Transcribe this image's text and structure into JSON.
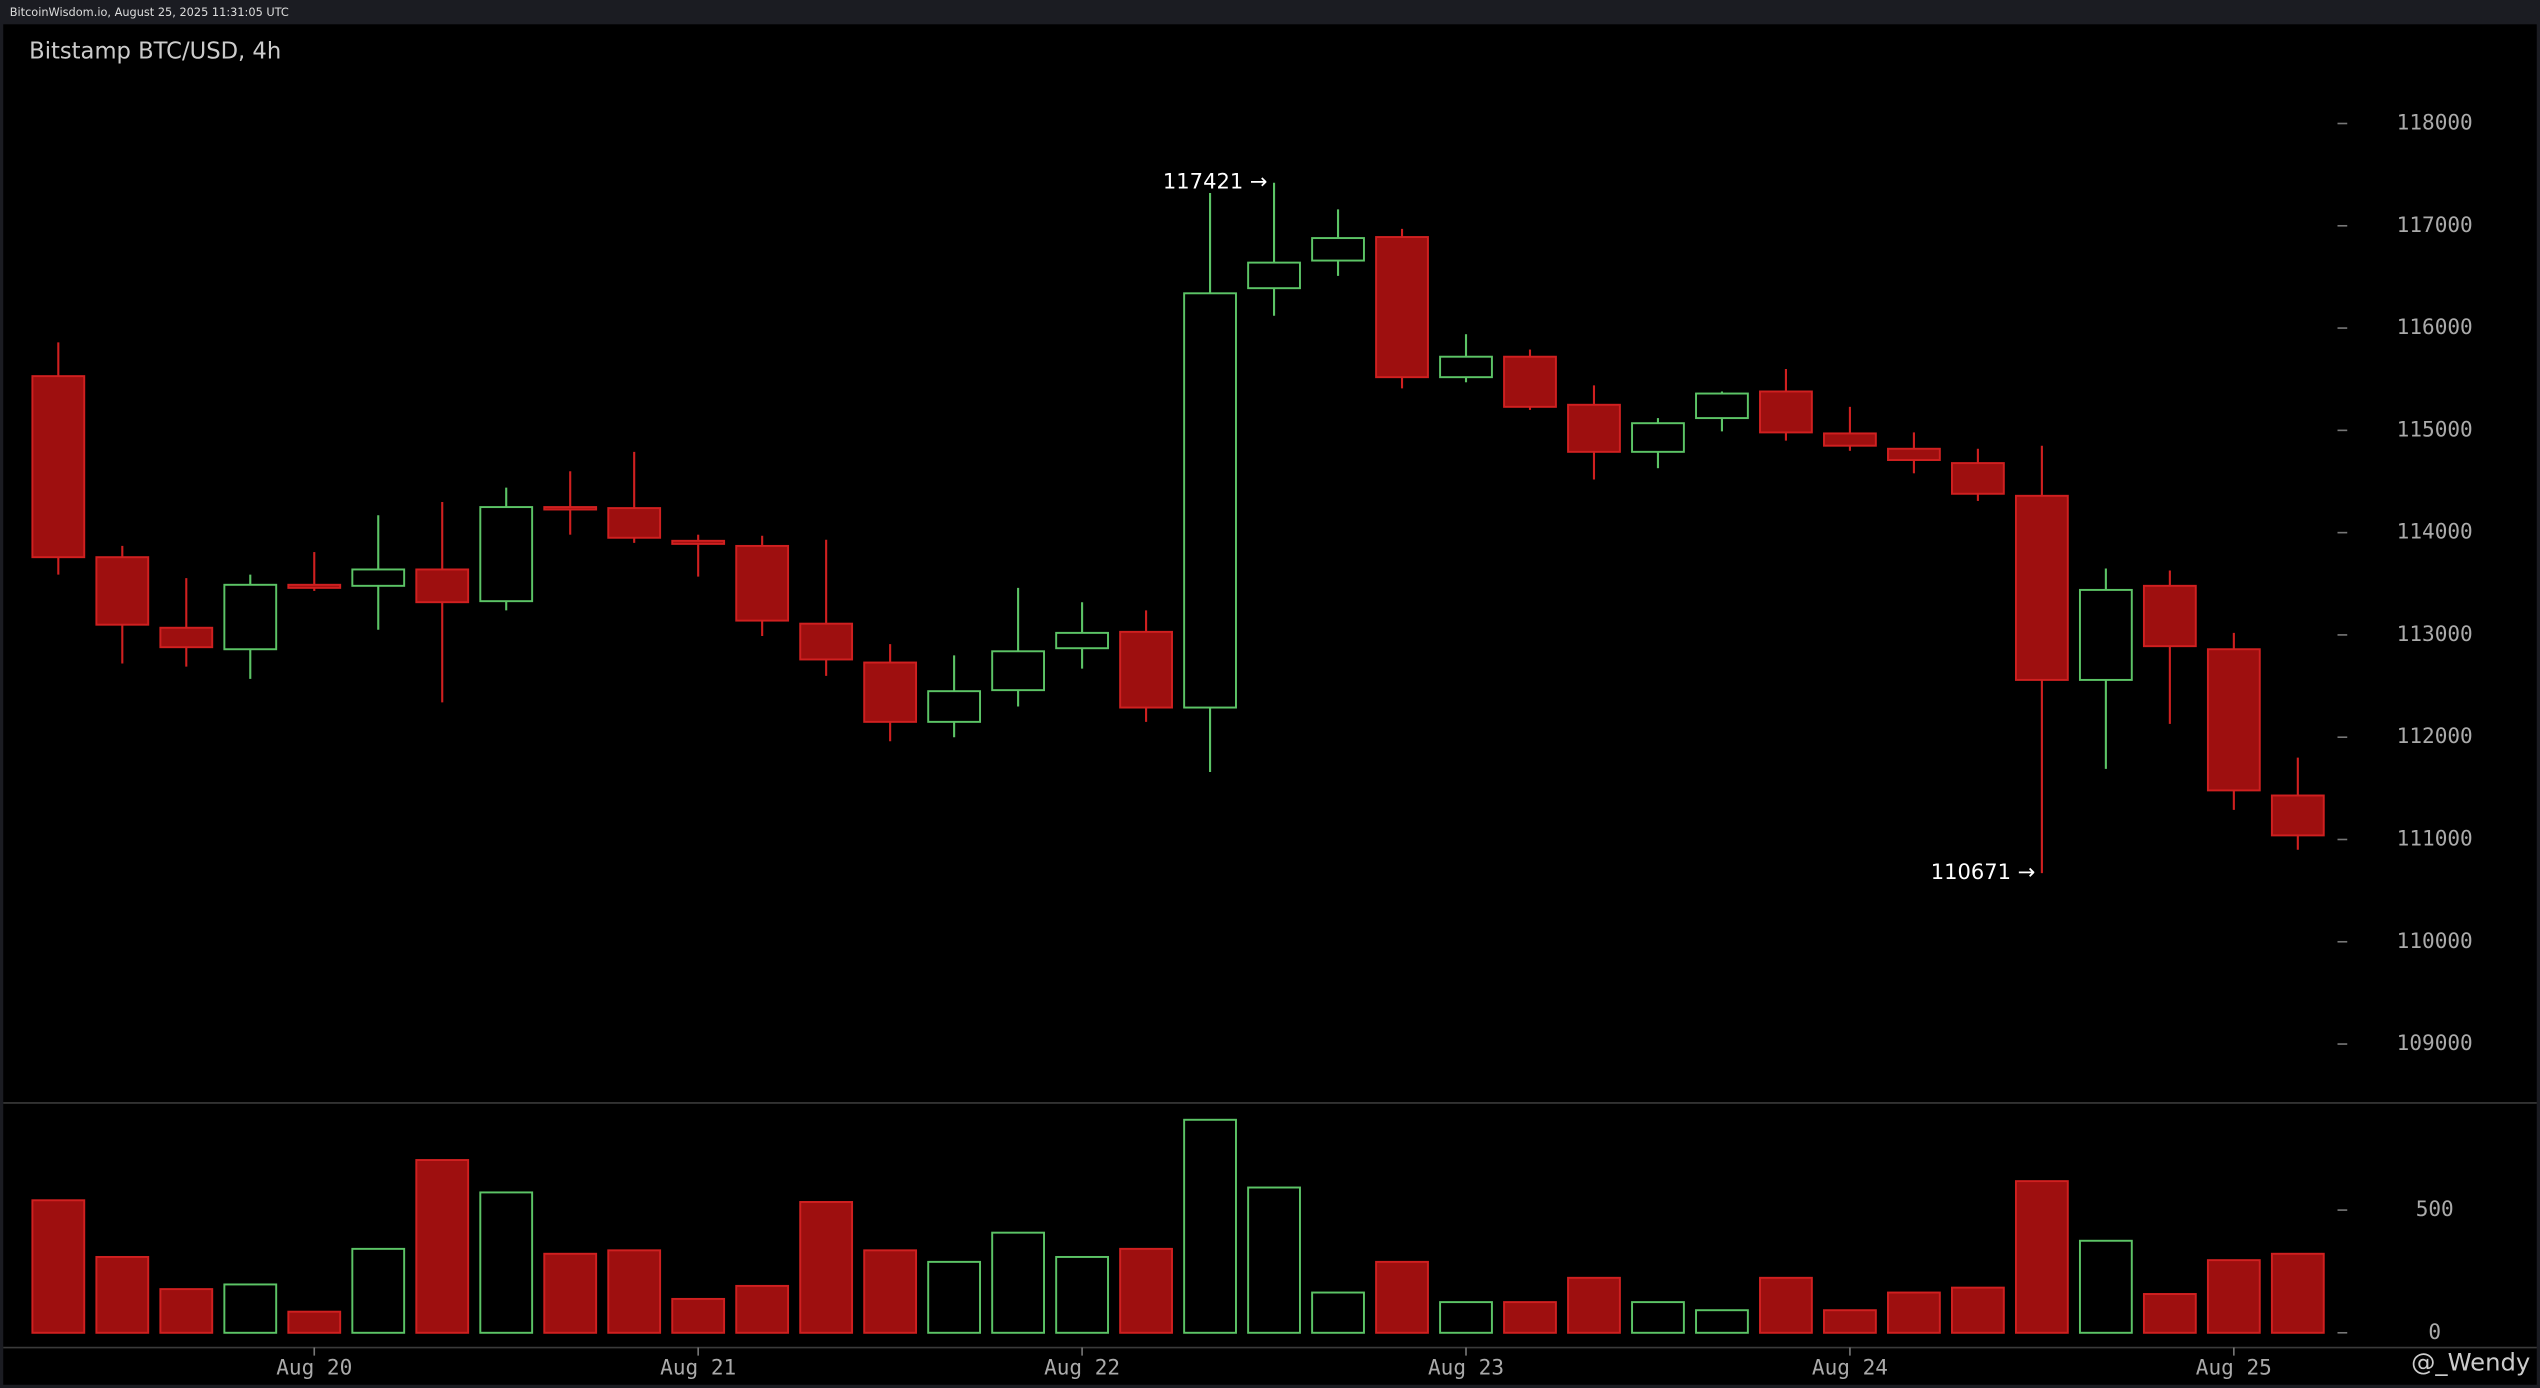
{
  "header": {
    "source": "BitcoinWisdom.io, August 25, 2025 11:31:05 UTC",
    "watermark": "@_Wendy"
  },
  "chart_data": [
    {
      "type": "candlestick",
      "title": "Bitstamp BTC/USD, 4h",
      "open": [
        115530,
        113760,
        113070,
        112860,
        113490,
        113480,
        113640,
        113330,
        114250,
        114240,
        113920,
        113870,
        113110,
        112730,
        112150,
        112460,
        112870,
        113030,
        112290,
        116390,
        116660,
        116890,
        115520,
        115720,
        115250,
        114790,
        115120,
        115380,
        114970,
        114820,
        114680,
        114360,
        112560,
        113480,
        112860,
        111430
      ],
      "high": [
        115860,
        113870,
        113555,
        113590,
        113810,
        114170,
        114300,
        114440,
        114600,
        114790,
        113980,
        113970,
        113930,
        112910,
        112800,
        113460,
        113320,
        113240,
        117320,
        117421,
        117160,
        116970,
        115940,
        115790,
        115440,
        115120,
        115380,
        115600,
        115230,
        114980,
        114820,
        114850,
        113650,
        113630,
        113020,
        111800
      ],
      "low": [
        113590,
        112720,
        112690,
        112570,
        113430,
        113050,
        112340,
        113240,
        113980,
        113900,
        113570,
        112990,
        112600,
        111960,
        112000,
        112300,
        112670,
        112150,
        111660,
        116120,
        116510,
        115410,
        115470,
        115200,
        114520,
        114630,
        114990,
        114900,
        114800,
        114580,
        114310,
        110671,
        111690,
        112130,
        111290,
        110900
      ],
      "close": [
        113760,
        113100,
        112880,
        113490,
        113460,
        113640,
        113320,
        114250,
        114240,
        113950,
        113890,
        113140,
        112760,
        112150,
        112450,
        112840,
        113020,
        112290,
        116340,
        116640,
        116880,
        115520,
        115720,
        115230,
        114790,
        115070,
        115360,
        114980,
        114850,
        114710,
        114380,
        112560,
        113440,
        112890,
        111480,
        111040
      ],
      "up_color": "#5cc466",
      "down_color": "#9e0f0f",
      "ylim": [
        108440,
        118970
      ],
      "yticks": [
        109000,
        110000,
        111000,
        112000,
        113000,
        114000,
        115000,
        116000,
        117000,
        118000
      ],
      "annotations": [
        {
          "text": "117421 →"
        },
        {
          "text": "110671 →"
        }
      ]
    },
    {
      "type": "bar",
      "categories": [
        null,
        null,
        null,
        null,
        "Aug 20",
        null,
        null,
        null,
        null,
        null,
        "Aug 21",
        null,
        null,
        null,
        null,
        null,
        "Aug 22",
        null,
        null,
        null,
        null,
        null,
        "Aug 23",
        null,
        null,
        null,
        null,
        null,
        "Aug 24",
        null,
        null,
        null,
        null,
        null,
        "Aug 25",
        null
      ],
      "values": [
        540,
        309,
        178,
        197,
        86,
        342,
        704,
        572,
        322,
        336,
        138,
        191,
        533,
        336,
        289,
        408,
        309,
        342,
        868,
        592,
        164,
        289,
        125,
        125,
        224,
        125,
        92,
        224,
        92,
        164,
        184,
        618,
        375,
        158,
        296,
        322
      ],
      "ylim": [
        -60,
        930
      ],
      "yticks": [
        0,
        500
      ]
    }
  ]
}
